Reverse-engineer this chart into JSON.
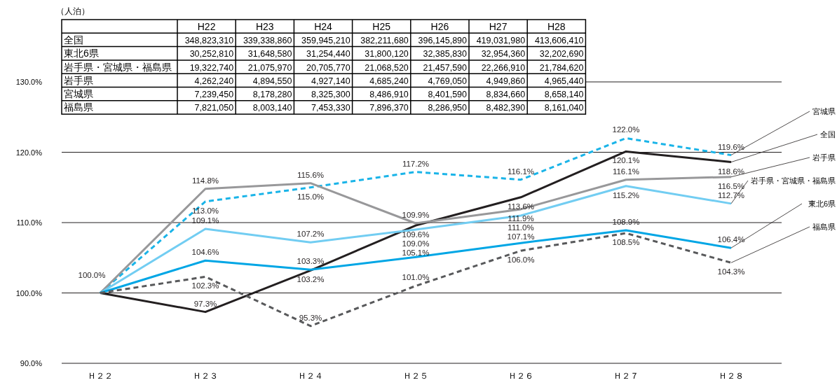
{
  "chart_data": [
    {
      "type": "other",
      "title": "（人泊）",
      "categories": [
        "H22",
        "H23",
        "H24",
        "H25",
        "H26",
        "H27",
        "H28"
      ],
      "y_categories": [
        "全国",
        "東北6県",
        "岩手県・宮城県・福島県",
        "岩手県",
        "宮城県",
        "福島県"
      ],
      "cell_labels": [
        [
          "348,823,310",
          "339,338,860",
          "359,945,210",
          "382,211,680",
          "396,145,890",
          "419,031,980",
          "413,606,410"
        ],
        [
          "30,252,810",
          "31,648,580",
          "31,254,440",
          "31,800,120",
          "32,385,830",
          "32,954,360",
          "32,202,690"
        ],
        [
          "19,322,740",
          "21,075,970",
          "20,705,770",
          "21,068,520",
          "21,457,590",
          "22,266,910",
          "21,784,620"
        ],
        [
          "4,262,240",
          "4,894,550",
          "4,927,140",
          "4,685,240",
          "4,769,050",
          "4,949,860",
          "4,965,440"
        ],
        [
          "7,239,450",
          "8,178,280",
          "8,325,300",
          "8,486,910",
          "8,401,590",
          "8,834,660",
          "8,658,140"
        ],
        [
          "7,821,050",
          "8,003,140",
          "7,453,330",
          "7,896,370",
          "8,286,950",
          "8,482,390",
          "8,161,040"
        ]
      ]
    },
    {
      "type": "line",
      "categories": [
        "Ｈ２２",
        "Ｈ２３",
        "Ｈ２４",
        "Ｈ２５",
        "Ｈ２６",
        "Ｈ２７",
        "Ｈ２８"
      ],
      "ylim": [
        90,
        130
      ],
      "yticks": [
        {
          "value": 90,
          "label": "90.0%"
        },
        {
          "value": 100,
          "label": "100.0%"
        },
        {
          "value": 110,
          "label": "110.0%"
        },
        {
          "value": 120,
          "label": "120.0%"
        },
        {
          "value": 130,
          "label": "130.0%"
        }
      ],
      "grid": "y",
      "legend": false,
      "marker": "none",
      "series": [
        {
          "name": "宮城県",
          "color": "#1ab4e8",
          "line_style": "dashed",
          "values": [
            100,
            113.0,
            115.0,
            117.2,
            116.1,
            122.0,
            119.6
          ],
          "value_labels": [
            null,
            "113.0%",
            "115.0%",
            "117.2%",
            "116.1%",
            "122.0%",
            "119.6%"
          ]
        },
        {
          "name": "全国",
          "color": "#231f20",
          "line_style": "solid",
          "values": [
            100,
            97.3,
            103.2,
            109.6,
            113.6,
            120.1,
            118.6
          ],
          "value_labels": [
            null,
            "97.3%",
            "103.2%",
            "109.6%",
            "113.6%",
            "120.1%",
            "118.6%"
          ]
        },
        {
          "name": "岩手県",
          "color": "#98989a",
          "line_style": "solid",
          "values": [
            100,
            114.8,
            115.6,
            109.9,
            111.9,
            116.1,
            116.5
          ],
          "value_labels": [
            null,
            "114.8%",
            "115.6%",
            "109.9%",
            "111.9%",
            "116.1%",
            "116.5%"
          ]
        },
        {
          "name": "岩手県・宮城県・福島県",
          "color": "#72cdf2",
          "line_style": "solid",
          "values": [
            100,
            109.1,
            107.2,
            109.0,
            111.0,
            115.2,
            112.7
          ],
          "value_labels": [
            null,
            "109.1%",
            "107.2%",
            "109.0%",
            "111.0%",
            "115.2%",
            "112.7%"
          ]
        },
        {
          "name": "東北6県",
          "color": "#00a6e5",
          "line_style": "solid",
          "values": [
            100,
            104.6,
            103.3,
            105.1,
            107.1,
            108.9,
            106.4
          ],
          "value_labels": [
            "100.0%",
            "104.6%",
            "103.3%",
            "105.1%",
            "107.1%",
            "108.9%",
            "106.4%"
          ]
        },
        {
          "name": "福島県",
          "color": "#58595b",
          "line_style": "dashed",
          "values": [
            100,
            102.3,
            95.3,
            101.0,
            106.0,
            108.5,
            104.3
          ],
          "value_labels": [
            null,
            "102.3%",
            "95.3%",
            "101.0%",
            "106.0%",
            "108.5%",
            "104.3%"
          ]
        }
      ]
    }
  ]
}
